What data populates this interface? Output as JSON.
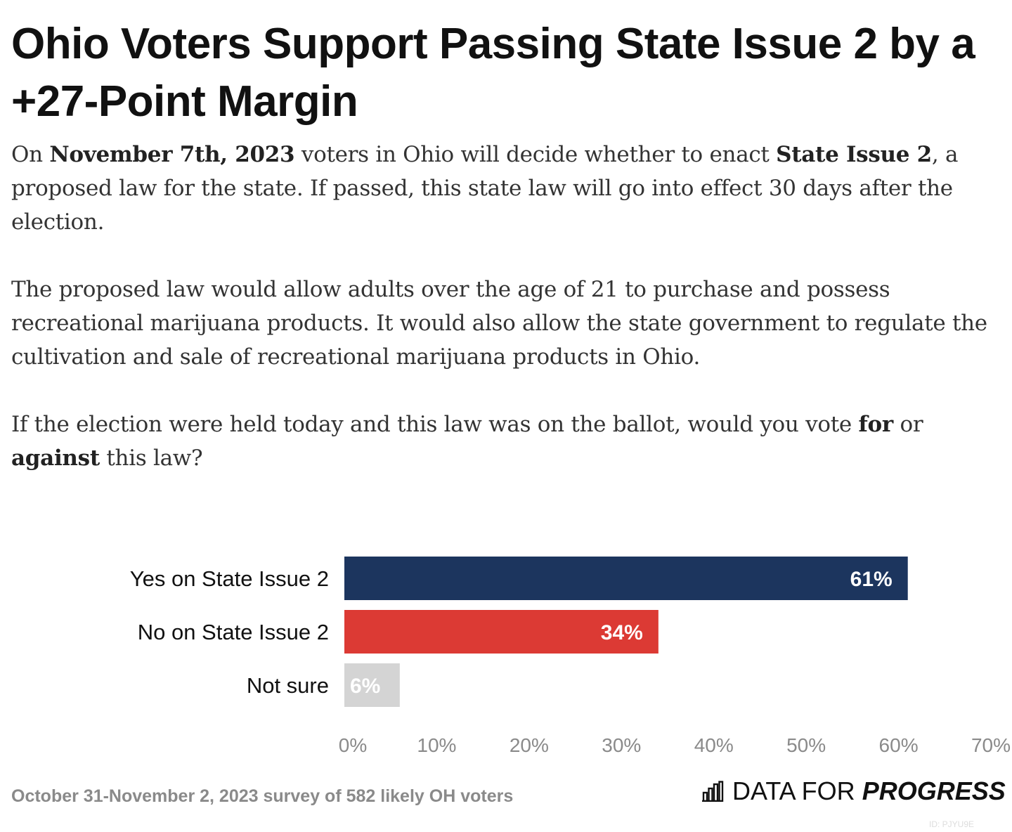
{
  "header": {
    "title": "Ohio Voters Support Passing State Issue 2 by a +27-Point Margin"
  },
  "intro": {
    "p1_a": "On ",
    "p1_b": "November 7th, 2023",
    "p1_c": " voters in Ohio will decide whether to enact ",
    "p1_d": "State Issue 2",
    "p1_e": ", a proposed law for the state. If passed, this state law will go into effect 30 days after the election.",
    "p2": "The proposed law would allow adults over the age of 21 to purchase and possess recreational marijuana products. It would also allow the state government to regulate the cultivation and sale of recreational marijuana products in Ohio.",
    "p3_a": "If the election were held today and this law was on the ballot, would you vote ",
    "p3_b": "for",
    "p3_c": " or ",
    "p3_d": "against",
    "p3_e": " this law?"
  },
  "chart_data": {
    "type": "bar",
    "orientation": "horizontal",
    "categories": [
      "Yes on State Issue 2",
      "No on State Issue 2",
      "Not sure"
    ],
    "values": [
      61,
      34,
      6
    ],
    "value_labels": [
      "61%",
      "34%",
      "6%"
    ],
    "colors": [
      "#1c355e",
      "#dc3a34",
      "#d4d4d4"
    ],
    "xlim": [
      0,
      70
    ],
    "xticks": [
      0,
      10,
      20,
      30,
      40,
      50,
      60,
      70
    ],
    "xtick_labels": [
      "0%",
      "10%",
      "20%",
      "30%",
      "40%",
      "50%",
      "60%",
      "70%"
    ],
    "grid": false
  },
  "footer": {
    "source": "October 31-November 2, 2023 survey of 582 likely OH voters",
    "brand_light": "DATA FOR ",
    "brand_strong": "PROGRESS",
    "chart_id": "ID: PJYU9E"
  }
}
